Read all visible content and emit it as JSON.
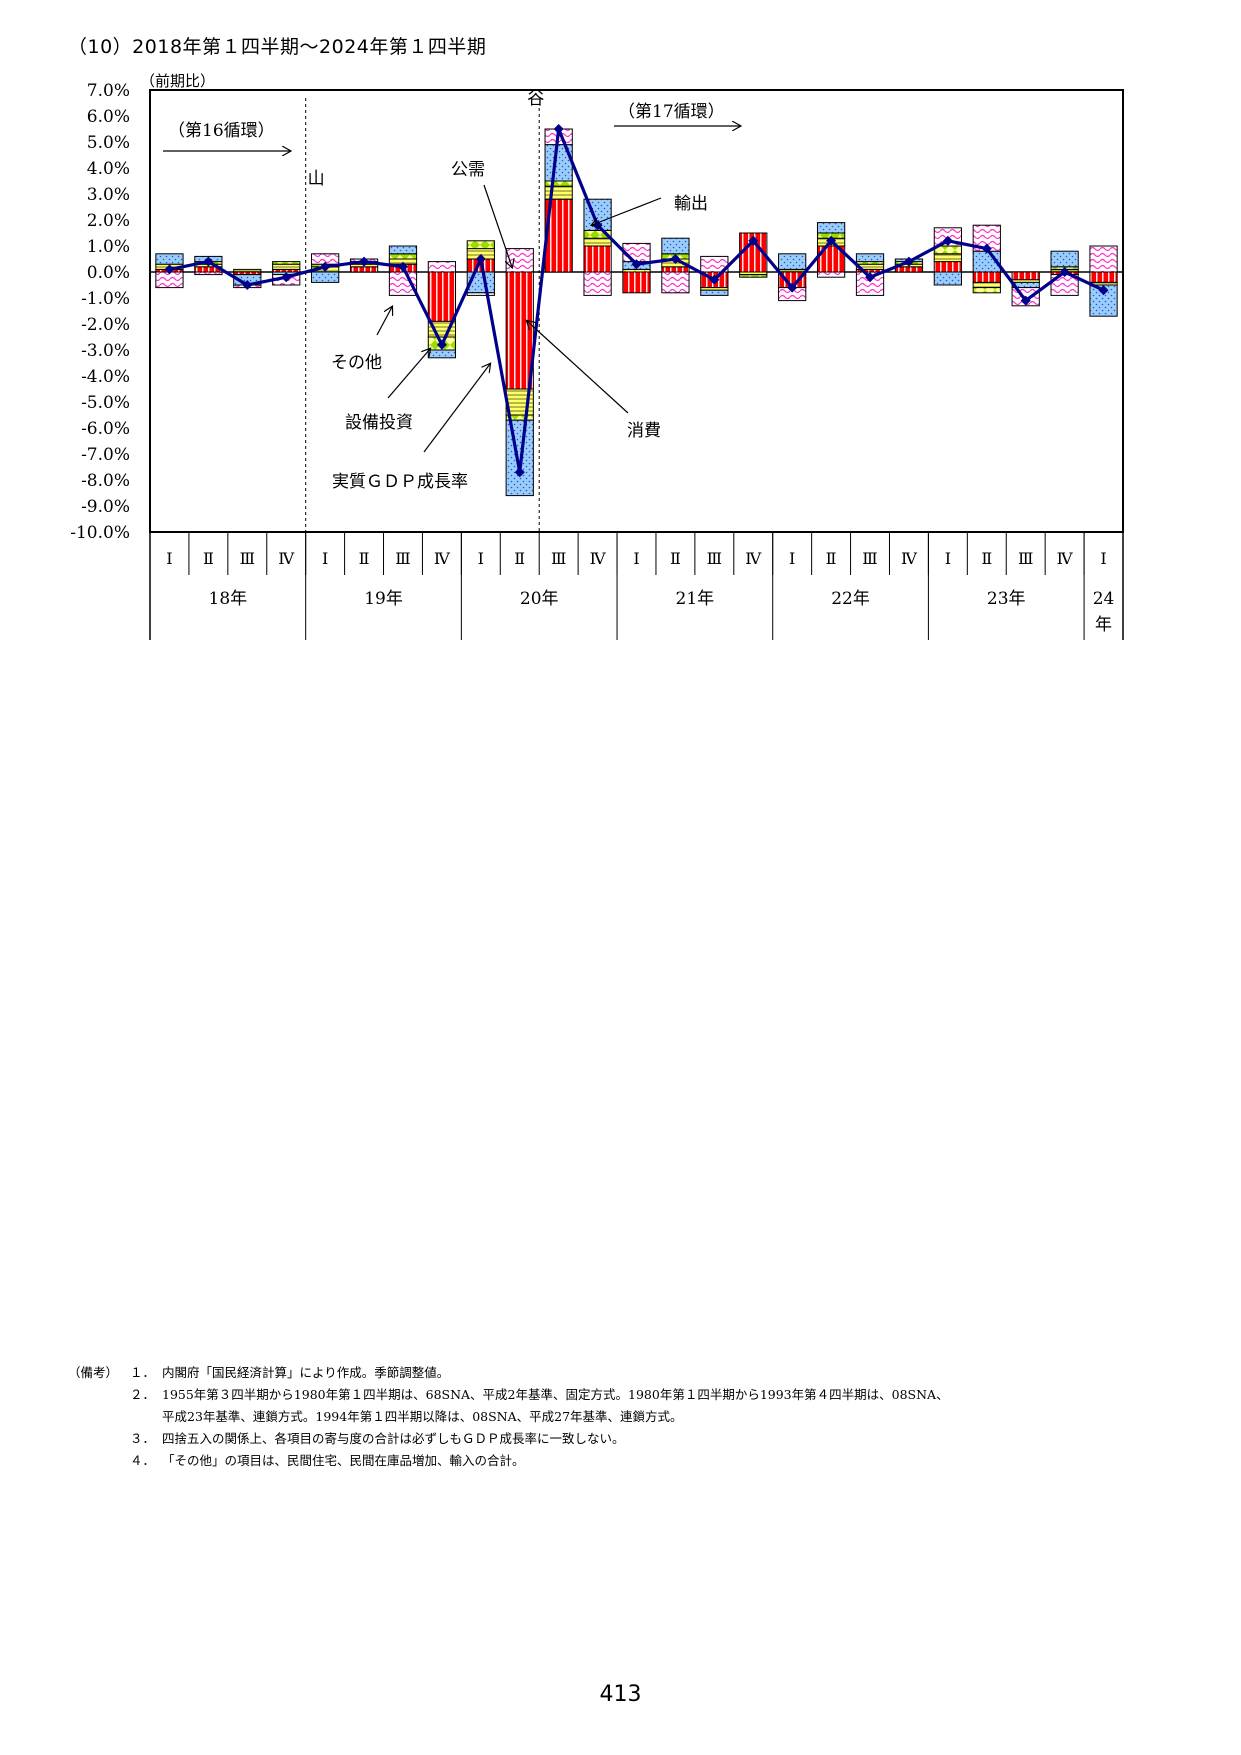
{
  "title": "（10）2018年第１四半期～2024年第１四半期",
  "colors": {
    "consumption": "#ff0000",
    "investment": "#ffff66",
    "public": "#99ff00",
    "exports": "#99ccff",
    "others": "#ff66ff",
    "gdp_line": "#00008b"
  },
  "chart_data": {
    "type": "bar",
    "stacked": true,
    "unit_label": "（前期比）",
    "ylim": [
      -10,
      7
    ],
    "y_ticks": [
      "7.0%",
      "6.0%",
      "5.0%",
      "4.0%",
      "3.0%",
      "2.0%",
      "1.0%",
      "0.0%",
      "-1.0%",
      "-2.0%",
      "-3.0%",
      "-4.0%",
      "-5.0%",
      "-6.0%",
      "-7.0%",
      "-8.0%",
      "-9.0%",
      "-10.0%"
    ],
    "quarters": [
      "Ⅰ",
      "Ⅱ",
      "Ⅲ",
      "Ⅳ",
      "Ⅰ",
      "Ⅱ",
      "Ⅲ",
      "Ⅳ",
      "Ⅰ",
      "Ⅱ",
      "Ⅲ",
      "Ⅳ",
      "Ⅰ",
      "Ⅱ",
      "Ⅲ",
      "Ⅳ",
      "Ⅰ",
      "Ⅱ",
      "Ⅲ",
      "Ⅳ",
      "Ⅰ",
      "Ⅱ",
      "Ⅲ",
      "Ⅳ",
      "Ⅰ"
    ],
    "years": [
      {
        "label": "18年",
        "span": 4
      },
      {
        "label": "19年",
        "span": 4
      },
      {
        "label": "20年",
        "span": 4
      },
      {
        "label": "21年",
        "span": 4
      },
      {
        "label": "22年",
        "span": 4
      },
      {
        "label": "23年",
        "span": 4
      },
      {
        "label": "24\n年",
        "span": 1
      }
    ],
    "series": [
      {
        "name": "消費",
        "key": "consumption",
        "values": [
          0.1,
          0.2,
          -0.1,
          0.1,
          0.0,
          0.2,
          0.3,
          -1.9,
          0.5,
          -4.5,
          2.8,
          1.0,
          -0.8,
          0.2,
          -0.6,
          1.5,
          -0.6,
          1.0,
          0.1,
          0.2,
          0.4,
          -0.4,
          -0.3,
          -0.1,
          -0.4
        ]
      },
      {
        "name": "設備投資",
        "key": "investment",
        "values": [
          0.2,
          0.1,
          0.1,
          0.2,
          0.2,
          0.1,
          0.2,
          -0.6,
          0.4,
          -1.0,
          0.5,
          0.3,
          0.0,
          0.3,
          -0.1,
          -0.1,
          0.1,
          0.3,
          0.2,
          0.1,
          0.3,
          -0.2,
          -0.1,
          0.1,
          -0.1
        ]
      },
      {
        "name": "公需",
        "key": "public",
        "values": [
          0.0,
          0.1,
          0.0,
          0.1,
          0.1,
          0.1,
          0.2,
          -0.5,
          0.3,
          -0.2,
          0.2,
          0.3,
          0.1,
          0.2,
          0.0,
          -0.1,
          0.0,
          0.2,
          0.1,
          0.1,
          0.3,
          -0.2,
          0.0,
          0.1,
          0.0
        ]
      },
      {
        "name": "輸出",
        "key": "exports",
        "values": [
          0.4,
          0.2,
          -0.4,
          -0.1,
          -0.4,
          0.0,
          0.3,
          -0.3,
          -0.8,
          -2.9,
          1.4,
          1.2,
          0.3,
          0.6,
          -0.2,
          0.0,
          0.6,
          0.4,
          0.3,
          0.1,
          -0.5,
          0.8,
          -0.2,
          0.6,
          -1.2
        ]
      },
      {
        "name": "その他",
        "key": "others",
        "values": [
          -0.6,
          -0.1,
          -0.1,
          -0.4,
          0.4,
          0.1,
          -0.9,
          0.4,
          -0.1,
          0.9,
          0.6,
          -0.9,
          0.7,
          -0.8,
          0.6,
          0.0,
          -0.5,
          -0.2,
          -0.9,
          0.0,
          0.7,
          1.0,
          -0.7,
          -0.8,
          1.0
        ]
      }
    ],
    "gdp_series": {
      "name": "実質ＧＤＰ成長率",
      "values": [
        0.1,
        0.4,
        -0.5,
        -0.2,
        0.2,
        0.4,
        0.2,
        -2.8,
        0.5,
        -7.7,
        5.5,
        1.8,
        0.3,
        0.5,
        -0.3,
        1.2,
        -0.6,
        1.2,
        -0.2,
        0.4,
        1.2,
        0.9,
        -1.1,
        0.0,
        -0.7
      ]
    },
    "markers": [
      {
        "label": "山",
        "after_index": 3
      },
      {
        "label": "谷",
        "after_index": 9
      }
    ],
    "annotations": {
      "cycle16": "（第16循環）",
      "cycle17": "（第17循環）",
      "public": "公需",
      "exports": "輸出",
      "others": "その他",
      "investment": "設備投資",
      "gdp": "実質ＧＤＰ成長率",
      "consumption": "消費"
    }
  },
  "notes": {
    "head": "（備考）",
    "items": [
      {
        "num": "１．",
        "lines": [
          "内閣府「国民経済計算」により作成。季節調整値。"
        ]
      },
      {
        "num": "２．",
        "lines": [
          "1955年第３四半期から1980年第１四半期は、68SNA、平成2年基準、固定方式。1980年第１四半期から1993年第４四半期は、08SNA、",
          "平成23年基準、連鎖方式。1994年第１四半期以降は、08SNA、平成27年基準、連鎖方式。"
        ]
      },
      {
        "num": "３．",
        "lines": [
          "四捨五入の関係上、各項目の寄与度の合計は必ずしもＧＤＰ成長率に一致しない。"
        ]
      },
      {
        "num": "４．",
        "lines": [
          "「その他」の項目は、民間住宅、民間在庫品増加、輸入の合計。"
        ]
      }
    ]
  },
  "page_number": "413"
}
